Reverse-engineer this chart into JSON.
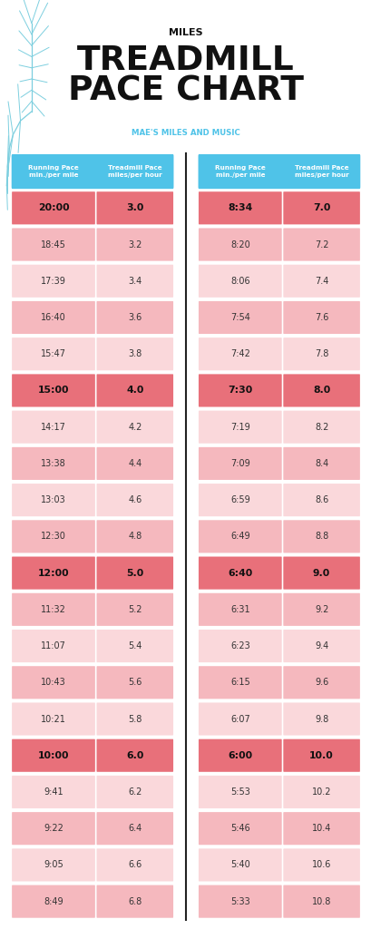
{
  "title_small": "MILES",
  "title_large": "TREADMILL\nPACE CHART",
  "subtitle": "MAE'S MILES AND MUSIC",
  "header_col1": "Running Pace\nmin./per mile",
  "header_col2": "Treadmill Pace\nmiles/per hour",
  "left_data": [
    [
      "20:00",
      "3.0",
      true
    ],
    [
      "18:45",
      "3.2",
      false
    ],
    [
      "17:39",
      "3.4",
      false
    ],
    [
      "16:40",
      "3.6",
      false
    ],
    [
      "15:47",
      "3.8",
      false
    ],
    [
      "15:00",
      "4.0",
      true
    ],
    [
      "14:17",
      "4.2",
      false
    ],
    [
      "13:38",
      "4.4",
      false
    ],
    [
      "13:03",
      "4.6",
      false
    ],
    [
      "12:30",
      "4.8",
      false
    ],
    [
      "12:00",
      "5.0",
      true
    ],
    [
      "11:32",
      "5.2",
      false
    ],
    [
      "11:07",
      "5.4",
      false
    ],
    [
      "10:43",
      "5.6",
      false
    ],
    [
      "10:21",
      "5.8",
      false
    ],
    [
      "10:00",
      "6.0",
      true
    ],
    [
      "9:41",
      "6.2",
      false
    ],
    [
      "9:22",
      "6.4",
      false
    ],
    [
      "9:05",
      "6.6",
      false
    ],
    [
      "8:49",
      "6.8",
      false
    ]
  ],
  "right_data": [
    [
      "8:34",
      "7.0",
      true
    ],
    [
      "8:20",
      "7.2",
      false
    ],
    [
      "8:06",
      "7.4",
      false
    ],
    [
      "7:54",
      "7.6",
      false
    ],
    [
      "7:42",
      "7.8",
      false
    ],
    [
      "7:30",
      "8.0",
      true
    ],
    [
      "7:19",
      "8.2",
      false
    ],
    [
      "7:09",
      "8.4",
      false
    ],
    [
      "6:59",
      "8.6",
      false
    ],
    [
      "6:49",
      "8.8",
      false
    ],
    [
      "6:40",
      "9.0",
      true
    ],
    [
      "6:31",
      "9.2",
      false
    ],
    [
      "6:23",
      "9.4",
      false
    ],
    [
      "6:15",
      "9.6",
      false
    ],
    [
      "6:07",
      "9.8",
      false
    ],
    [
      "6:00",
      "10.0",
      true
    ],
    [
      "5:53",
      "10.2",
      false
    ],
    [
      "5:46",
      "10.4",
      false
    ],
    [
      "5:40",
      "10.6",
      false
    ],
    [
      "5:33",
      "10.8",
      false
    ]
  ],
  "color_header_bg": "#4FC3E8",
  "color_highlight": "#E8707A",
  "color_light_pink": "#F5B8BE",
  "color_lighter_pink": "#FAD8DB",
  "color_white": "#FFFFFF",
  "color_divider": "#222222",
  "color_title": "#111111",
  "color_subtitle": "#4FC3E8",
  "color_header_text": "#FFFFFF",
  "color_highlight_text": "#111111",
  "color_normal_text": "#333333",
  "leaf_color": "#7DCFDF"
}
